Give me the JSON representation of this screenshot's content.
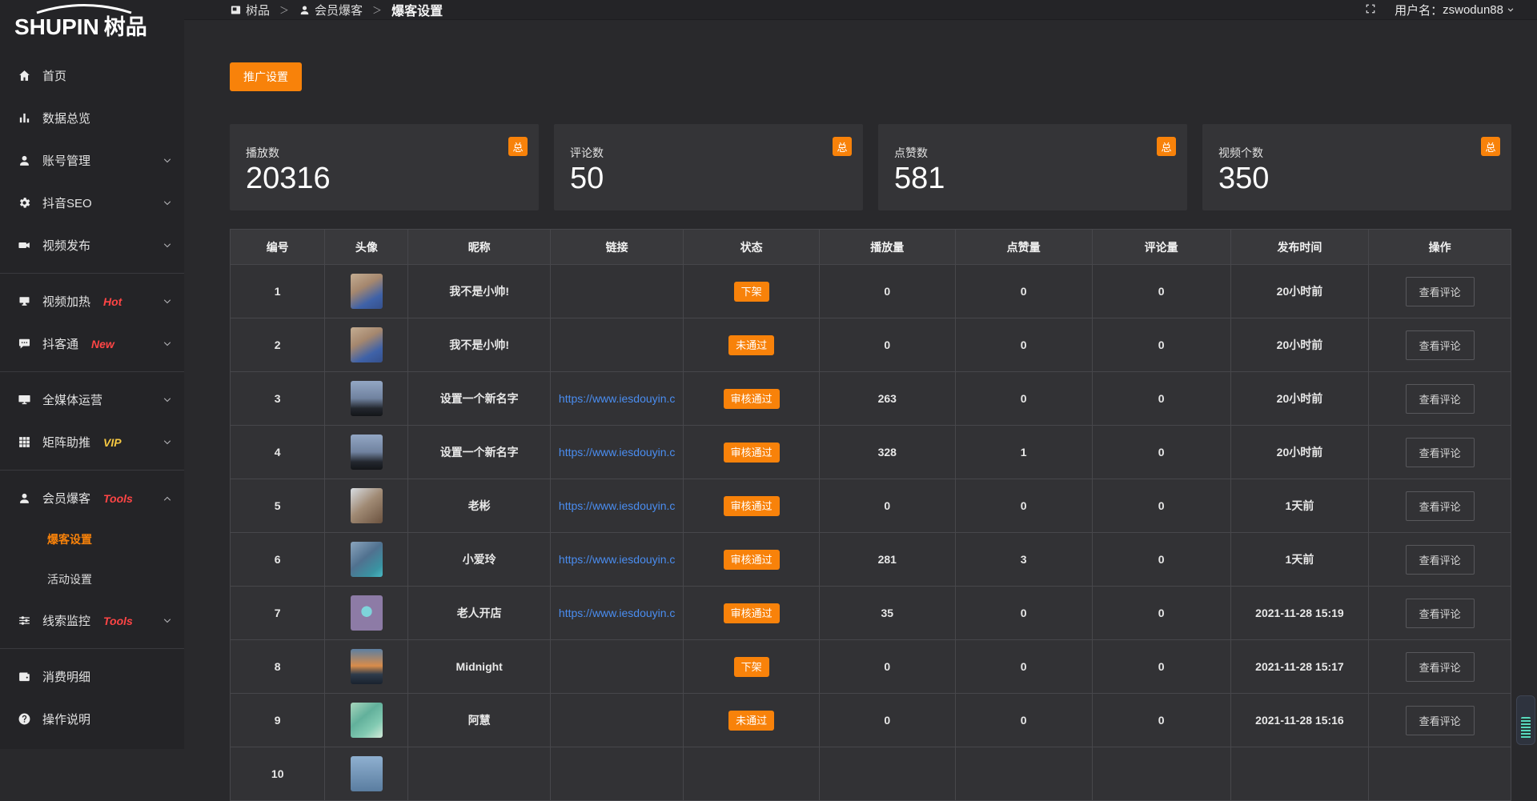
{
  "brand": {
    "logo_en": "SHUPIN",
    "logo_cn": "树品"
  },
  "topbar": {
    "breadcrumb": [
      {
        "label": "树品",
        "icon": "app-icon"
      },
      {
        "label": "会员爆客",
        "icon": "user-icon"
      },
      {
        "label": "爆客设置"
      }
    ],
    "username_label": "用户名：",
    "username": "zswodun88"
  },
  "sidebar": {
    "items": [
      {
        "label": "首页",
        "icon": "home-icon"
      },
      {
        "label": "数据总览",
        "icon": "bar-chart-icon"
      },
      {
        "label": "账号管理",
        "icon": "user-icon",
        "expandable": true
      },
      {
        "label": "抖音SEO",
        "icon": "gear-icon",
        "expandable": true
      },
      {
        "label": "视频发布",
        "icon": "video-camera-icon",
        "expandable": true
      },
      {
        "type": "divider"
      },
      {
        "label": "视频加热",
        "icon": "screen-icon",
        "badge": "Hot",
        "badge_color": "#FF4545",
        "expandable": true
      },
      {
        "label": "抖客通",
        "icon": "chat-icon",
        "badge": "New",
        "badge_color": "#FF4545",
        "expandable": true
      },
      {
        "type": "divider"
      },
      {
        "label": "全媒体运营",
        "icon": "monitor-icon",
        "expandable": true
      },
      {
        "label": "矩阵助推",
        "icon": "grid-icon",
        "badge": "VIP",
        "badge_color": "#F6C842",
        "expandable": true
      },
      {
        "type": "divider"
      },
      {
        "label": "会员爆客",
        "icon": "user-icon",
        "badge": "Tools",
        "badge_color": "#FF4545",
        "expandable": true,
        "expanded": true,
        "children": [
          {
            "label": "爆客设置",
            "active": true
          },
          {
            "label": "活动设置"
          }
        ]
      },
      {
        "label": "线索监控",
        "icon": "sliders-icon",
        "badge": "Tools",
        "badge_color": "#FF4545",
        "expandable": true
      },
      {
        "type": "divider"
      },
      {
        "label": "消费明细",
        "icon": "wallet-icon"
      },
      {
        "label": "操作说明",
        "icon": "question-icon"
      }
    ]
  },
  "content": {
    "promo_button": "推广设置",
    "stats": [
      {
        "label": "播放数",
        "value": "20316",
        "tag": "总"
      },
      {
        "label": "评论数",
        "value": "50",
        "tag": "总"
      },
      {
        "label": "点赞数",
        "value": "581",
        "tag": "总"
      },
      {
        "label": "视频个数",
        "value": "350",
        "tag": "总"
      }
    ],
    "table": {
      "columns": [
        "编号",
        "头像",
        "昵称",
        "链接",
        "状态",
        "播放量",
        "点赞量",
        "评论量",
        "发布时间",
        "操作"
      ],
      "action_label": "查看评论",
      "rows": [
        {
          "no": "1",
          "avatar": "boy-blue",
          "nickname": "我不是小帅!",
          "link": "",
          "status": "下架",
          "plays": "0",
          "likes": "0",
          "comments": "0",
          "time": "20小时前"
        },
        {
          "no": "2",
          "avatar": "boy-blue",
          "nickname": "我不是小帅!",
          "link": "",
          "status": "未通过",
          "plays": "0",
          "likes": "0",
          "comments": "0",
          "time": "20小时前"
        },
        {
          "no": "3",
          "avatar": "evening-sky",
          "nickname": "设置一个新名字",
          "link": "https://www.iesdouyin.c",
          "status": "审核通过",
          "plays": "263",
          "likes": "0",
          "comments": "0",
          "time": "20小时前"
        },
        {
          "no": "4",
          "avatar": "evening-sky",
          "nickname": "设置一个新名字",
          "link": "https://www.iesdouyin.c",
          "status": "审核通过",
          "plays": "328",
          "likes": "1",
          "comments": "0",
          "time": "20小时前"
        },
        {
          "no": "5",
          "avatar": "man-face",
          "nickname": "老彬",
          "link": "https://www.iesdouyin.c",
          "status": "审核通过",
          "plays": "0",
          "likes": "0",
          "comments": "0",
          "time": "1天前"
        },
        {
          "no": "6",
          "avatar": "pool-scene",
          "nickname": "小爱玲",
          "link": "https://www.iesdouyin.c",
          "status": "审核通过",
          "plays": "281",
          "likes": "3",
          "comments": "0",
          "time": "1天前"
        },
        {
          "no": "7",
          "avatar": "purple-cartoon",
          "nickname": "老人开店",
          "link": "https://www.iesdouyin.c",
          "status": "审核通过",
          "plays": "35",
          "likes": "0",
          "comments": "0",
          "time": "2021-11-28 15:19"
        },
        {
          "no": "8",
          "avatar": "sunset-water",
          "nickname": "Midnight",
          "link": "",
          "status": "下架",
          "plays": "0",
          "likes": "0",
          "comments": "0",
          "time": "2021-11-28 15:17"
        },
        {
          "no": "9",
          "avatar": "green-water",
          "nickname": "阿慧",
          "link": "",
          "status": "未通过",
          "plays": "0",
          "likes": "0",
          "comments": "0",
          "time": "2021-11-28 15:16"
        },
        {
          "no": "10",
          "avatar": "blue-partial",
          "nickname": "",
          "link": "",
          "status": "",
          "plays": "",
          "likes": "",
          "comments": "",
          "time": ""
        }
      ]
    }
  },
  "colors": {
    "accent_orange": "#F8820A",
    "link_blue": "#4A8DF0",
    "hot_red": "#FF4545",
    "vip_yellow": "#F6C842"
  }
}
